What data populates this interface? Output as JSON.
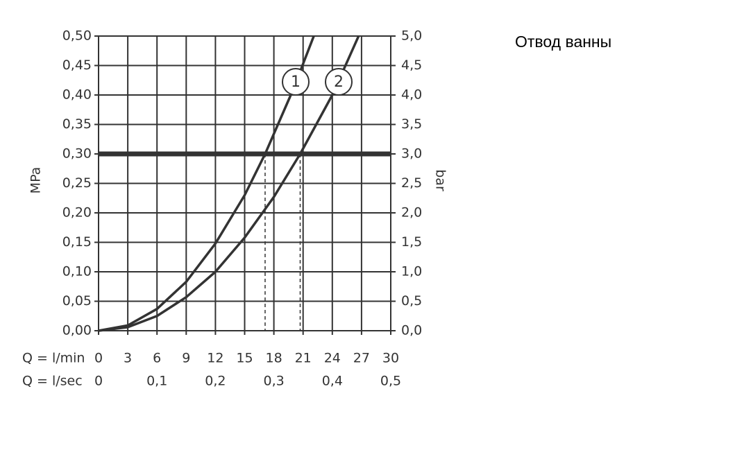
{
  "chart_data": {
    "type": "line",
    "title": "Отвод ванны",
    "y_label": "MPa",
    "y2_label": "bar",
    "x_label": "Q = l/min",
    "x2_label": "Q = l/sec",
    "xlim": [
      0,
      30
    ],
    "xticks": [
      0,
      3,
      6,
      9,
      12,
      15,
      18,
      21,
      24,
      27,
      30
    ],
    "x2lim": [
      0,
      0.5
    ],
    "x2ticks": [
      0,
      {
        "value": 0.1,
        "label": "0,1"
      },
      {
        "value": 0.2,
        "label": "0,2"
      },
      {
        "value": 0.3,
        "label": "0,3"
      },
      {
        "value": 0.4,
        "label": "0,4"
      },
      {
        "value": 0.5,
        "label": "0,5"
      }
    ],
    "ylim": [
      0,
      0.5
    ],
    "yticks": [
      {
        "value": 0,
        "label": "0,00"
      },
      {
        "value": 0.05,
        "label": "0,05"
      },
      {
        "value": 0.1,
        "label": "0,10"
      },
      {
        "value": 0.15,
        "label": "0,15"
      },
      {
        "value": 0.2,
        "label": "0,20"
      },
      {
        "value": 0.25,
        "label": "0,25"
      },
      {
        "value": 0.3,
        "label": "0,30"
      },
      {
        "value": 0.35,
        "label": "0,35"
      },
      {
        "value": 0.4,
        "label": "0,40"
      },
      {
        "value": 0.45,
        "label": "0,45"
      },
      {
        "value": 0.5,
        "label": "0,50"
      }
    ],
    "y2lim": [
      0,
      5
    ],
    "y2ticks": [
      {
        "value": 0,
        "label": "0,0"
      },
      {
        "value": 0.5,
        "label": "0,5"
      },
      {
        "value": 1,
        "label": "1,0"
      },
      {
        "value": 1.5,
        "label": "1,5"
      },
      {
        "value": 2,
        "label": "2,0"
      },
      {
        "value": 2.5,
        "label": "2,5"
      },
      {
        "value": 3,
        "label": "3,0"
      },
      {
        "value": 3.5,
        "label": "3,5"
      },
      {
        "value": 4,
        "label": "4,0"
      },
      {
        "value": 4.5,
        "label": "4,5"
      },
      {
        "value": 5,
        "label": "5,0"
      }
    ],
    "grid": true,
    "reference_line": 0.3,
    "drop_lines_x": [
      17.1,
      20.7
    ],
    "series": [
      {
        "name": "1",
        "color": "#333333",
        "x": [
          0,
          3,
          6,
          9,
          12,
          15,
          17.1,
          20,
          22.1
        ],
        "values": [
          0,
          0.009,
          0.037,
          0.083,
          0.148,
          0.23,
          0.3,
          0.41,
          0.5
        ]
      },
      {
        "name": "2",
        "color": "#333333",
        "x": [
          0,
          3,
          6,
          9,
          12,
          15,
          18,
          20.7,
          24,
          26.7
        ],
        "values": [
          0,
          0.006,
          0.025,
          0.057,
          0.1,
          0.158,
          0.227,
          0.3,
          0.4,
          0.5
        ]
      }
    ]
  }
}
